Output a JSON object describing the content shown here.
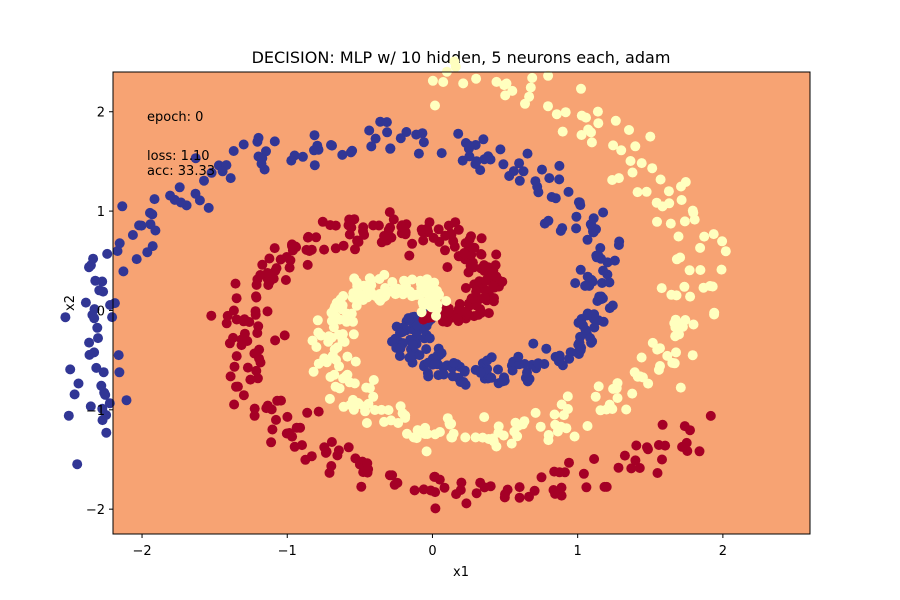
{
  "chart_data": {
    "type": "scatter",
    "title": "DECISION: MLP w/ 10 hidden, 5 neurons each, adam",
    "xlabel": "x1",
    "ylabel": "x2",
    "xlim": [
      -2.2,
      2.6
    ],
    "ylim": [
      -2.25,
      2.4
    ],
    "xticks": [
      -2,
      -1,
      0,
      1,
      2
    ],
    "yticks": [
      -2,
      -1,
      0,
      1,
      2
    ],
    "tick_labels_x": [
      "−2",
      "−1",
      "0",
      "1",
      "2"
    ],
    "tick_labels_y": [
      "−2",
      "−1",
      "0",
      "1",
      "2"
    ],
    "grid": false,
    "background_region_color": "#f7a373",
    "annotations": {
      "epoch": "epoch: 0",
      "loss": "loss:  1.10",
      "acc": "acc:  33.33"
    },
    "colors": {
      "class_0": "#313695",
      "class_1": "#a50026",
      "class_2": "#ffffbf"
    },
    "series": [
      {
        "color_key": "class_0",
        "arm": {
          "start_angle_deg": 200,
          "end_angle_deg": 570,
          "r0": 0.02,
          "r1": 2.55,
          "x_offset": 0.0,
          "y_offset": -0.05
        },
        "count": 330
      },
      {
        "color_key": "class_1",
        "arm": {
          "start_angle_deg": 320,
          "end_angle_deg": 690,
          "r0": 0.02,
          "r1": 2.15,
          "x_offset": 0.0,
          "y_offset": 0.0
        },
        "count": 330
      },
      {
        "color_key": "class_2",
        "arm": {
          "start_angle_deg": 440,
          "end_angle_deg": 810,
          "r0": 0.02,
          "r1": 2.35,
          "x_offset": 0.0,
          "y_offset": 0.0
        },
        "count": 330
      }
    ]
  }
}
